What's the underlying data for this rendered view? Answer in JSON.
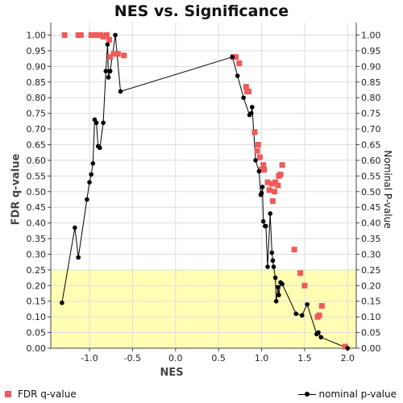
{
  "chart_data": {
    "type": "scatter",
    "title": "NES vs. Significance",
    "xlabel": "NES",
    "ylabel_left": "FDR q-value",
    "ylabel_right": "Nominal P-value",
    "xlim": [
      -1.45,
      2.1
    ],
    "ylim": [
      0,
      1.04
    ],
    "x_ticks": [
      "-1.0",
      "-0.5",
      "0.0",
      "0.5",
      "1.0",
      "1.5",
      "2.0"
    ],
    "x_tick_values": [
      -1.0,
      -0.5,
      0.0,
      0.5,
      1.0,
      1.5,
      2.0
    ],
    "y_ticks_left": [
      "0.00",
      "0.05",
      "0.10",
      "0.15",
      "0.20",
      "0.25",
      "0.30",
      "0.35",
      "0.40",
      "0.45",
      "0.50",
      "0.55",
      "0.60",
      "0.65",
      "0.70",
      "0.75",
      "0.80",
      "0.85",
      "0.90",
      "0.95",
      "1.00"
    ],
    "y_ticks_right": [
      "0.00",
      "0.05",
      "0.10",
      "0.15",
      "0.20",
      "0.25",
      "0.30",
      "0.35",
      "0.40",
      "0.45",
      "0.50",
      "0.55",
      "0.60",
      "0.65",
      "0.70",
      "0.75",
      "0.80",
      "0.85",
      "0.90",
      "0.95",
      "1.00"
    ],
    "y_tick_values": [
      0,
      0.05,
      0.1,
      0.15,
      0.2,
      0.25,
      0.3,
      0.35,
      0.4,
      0.45,
      0.5,
      0.55,
      0.6,
      0.65,
      0.7,
      0.75,
      0.8,
      0.85,
      0.9,
      0.95,
      1.0
    ],
    "highlight_band": {
      "y_from": 0,
      "y_to": 0.25,
      "color": "#ffffb3"
    },
    "series": [
      {
        "name": "FDR q-value",
        "kind": "scatter",
        "color": "#f05a5a",
        "points": [
          [
            -1.29,
            1.0
          ],
          [
            -1.13,
            1.0
          ],
          [
            -1.1,
            1.0
          ],
          [
            -0.98,
            1.0
          ],
          [
            -0.96,
            1.0
          ],
          [
            -0.93,
            1.0
          ],
          [
            -0.9,
            1.0
          ],
          [
            -0.87,
            1.0
          ],
          [
            -0.84,
            0.995
          ],
          [
            -0.8,
            1.0
          ],
          [
            -0.77,
            0.985
          ],
          [
            -0.76,
            0.93
          ],
          [
            -0.72,
            0.94
          ],
          [
            -0.67,
            0.94
          ],
          [
            -0.6,
            0.935
          ],
          [
            0.67,
            0.93
          ],
          [
            0.7,
            0.93
          ],
          [
            0.74,
            0.91
          ],
          [
            0.82,
            0.835
          ],
          [
            0.83,
            0.82
          ],
          [
            0.85,
            0.82
          ],
          [
            0.92,
            0.69
          ],
          [
            0.95,
            0.63
          ],
          [
            0.96,
            0.65
          ],
          [
            0.98,
            0.61
          ],
          [
            1.0,
            0.57
          ],
          [
            1.02,
            0.585
          ],
          [
            1.03,
            0.57
          ],
          [
            1.07,
            0.53
          ],
          [
            1.09,
            0.505
          ],
          [
            1.12,
            0.525
          ],
          [
            1.13,
            0.47
          ],
          [
            1.15,
            0.5
          ],
          [
            1.16,
            0.53
          ],
          [
            1.19,
            0.52
          ],
          [
            1.2,
            0.55
          ],
          [
            1.22,
            0.555
          ],
          [
            1.24,
            0.585
          ],
          [
            1.38,
            0.315
          ],
          [
            1.45,
            0.24
          ],
          [
            1.5,
            0.2
          ],
          [
            1.65,
            0.1
          ],
          [
            1.67,
            0.105
          ],
          [
            1.7,
            0.135
          ],
          [
            1.97,
            0.005
          ]
        ]
      },
      {
        "name": "nominal p-value",
        "kind": "line",
        "color": "#000000",
        "points": [
          [
            -1.32,
            0.145
          ],
          [
            -1.17,
            0.385
          ],
          [
            -1.13,
            0.29
          ],
          [
            -1.03,
            0.475
          ],
          [
            -1.0,
            0.53
          ],
          [
            -0.98,
            0.555
          ],
          [
            -0.96,
            0.59
          ],
          [
            -0.94,
            0.73
          ],
          [
            -0.92,
            0.72
          ],
          [
            -0.9,
            0.645
          ],
          [
            -0.88,
            0.64
          ],
          [
            -0.84,
            0.72
          ],
          [
            -0.81,
            0.885
          ],
          [
            -0.79,
            0.97
          ],
          [
            -0.78,
            0.865
          ],
          [
            -0.76,
            0.885
          ],
          [
            -0.7,
            1.0
          ],
          [
            -0.64,
            0.82
          ],
          [
            0.66,
            0.93
          ],
          [
            0.72,
            0.87
          ],
          [
            0.79,
            0.8
          ],
          [
            0.86,
            0.745
          ],
          [
            0.88,
            0.75
          ],
          [
            0.89,
            0.77
          ],
          [
            0.93,
            0.6
          ],
          [
            0.97,
            0.565
          ],
          [
            0.99,
            0.49
          ],
          [
            1.0,
            0.495
          ],
          [
            1.01,
            0.515
          ],
          [
            1.02,
            0.405
          ],
          [
            1.04,
            0.39
          ],
          [
            1.05,
            0.39
          ],
          [
            1.07,
            0.26
          ],
          [
            1.1,
            0.43
          ],
          [
            1.12,
            0.305
          ],
          [
            1.13,
            0.28
          ],
          [
            1.14,
            0.26
          ],
          [
            1.16,
            0.225
          ],
          [
            1.17,
            0.15
          ],
          [
            1.19,
            0.195
          ],
          [
            1.2,
            0.17
          ],
          [
            1.22,
            0.21
          ],
          [
            1.24,
            0.205
          ],
          [
            1.4,
            0.11
          ],
          [
            1.47,
            0.105
          ],
          [
            1.53,
            0.14
          ],
          [
            1.64,
            0.045
          ],
          [
            1.66,
            0.05
          ],
          [
            1.69,
            0.035
          ],
          [
            2.0,
            0.0
          ]
        ]
      }
    ],
    "grid": true,
    "legend": {
      "position": "bottom",
      "left_label": "FDR q-value",
      "right_label": "nominal p-value"
    }
  }
}
